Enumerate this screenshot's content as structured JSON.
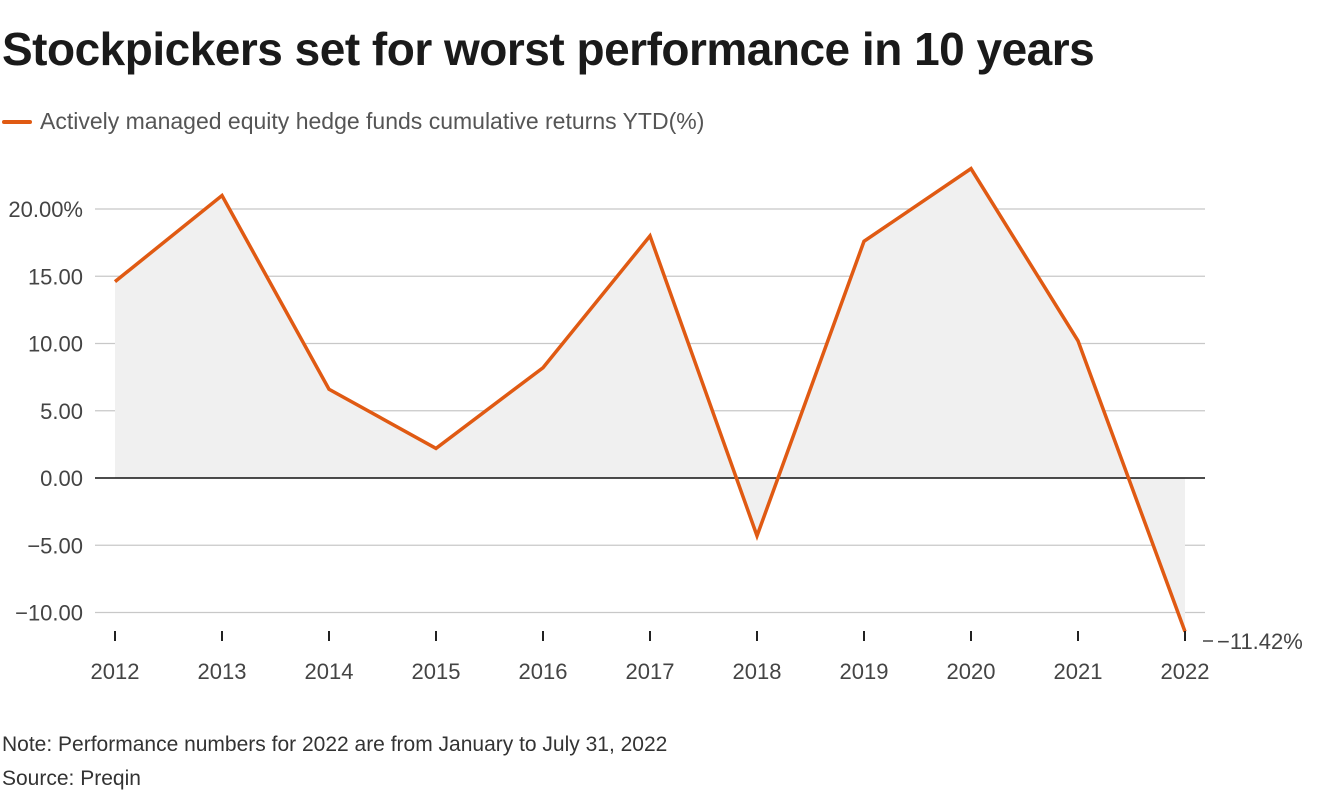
{
  "chart_data": {
    "type": "area",
    "title": "Stockpickers set for worst performance in 10 years",
    "series": [
      {
        "name": "Actively managed equity hedge funds cumulative returns YTD(%)",
        "color": "#e05a13",
        "values": [
          14.6,
          21.0,
          6.6,
          2.2,
          8.2,
          18.0,
          -4.3,
          17.6,
          23.0,
          10.2,
          -11.42
        ]
      }
    ],
    "x": [
      "2012",
      "2013",
      "2014",
      "2015",
      "2016",
      "2017",
      "2018",
      "2019",
      "2020",
      "2021",
      "2022"
    ],
    "ylim": [
      -12,
      24
    ],
    "yticks": [
      {
        "value": 20,
        "label": "20.00%"
      },
      {
        "value": 15,
        "label": "15.00"
      },
      {
        "value": 10,
        "label": "10.00"
      },
      {
        "value": 5,
        "label": "5.00"
      },
      {
        "value": 0,
        "label": "0.00"
      },
      {
        "value": -5,
        "label": "−5.00"
      },
      {
        "value": -10,
        "label": "−10.00"
      }
    ],
    "end_label": "−11.42%",
    "fill_color": "#f0f0f0",
    "grid_color": "#c8c8c8"
  },
  "note": "Note: Performance numbers for 2022 are from January to July 31, 2022",
  "source": "Source: Preqin"
}
